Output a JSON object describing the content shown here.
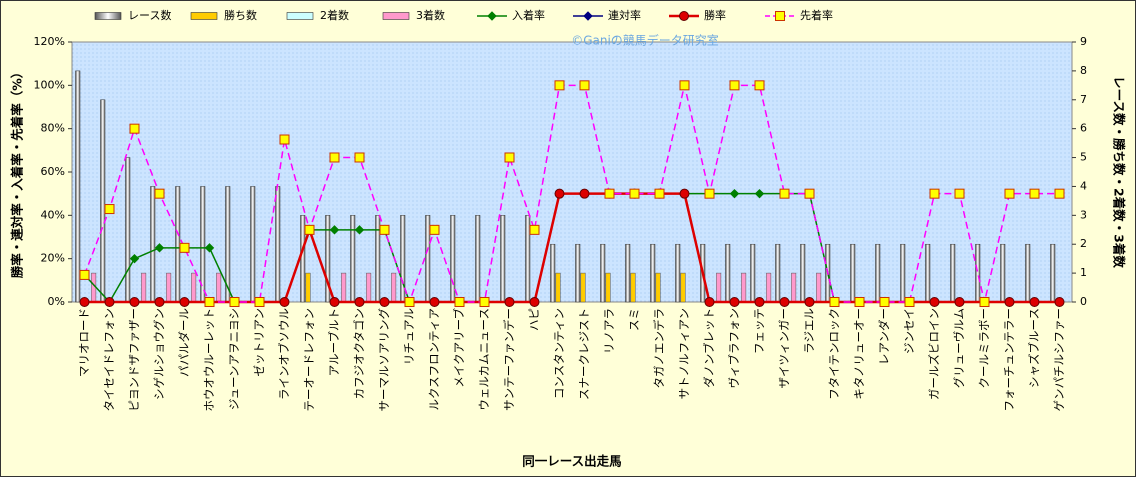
{
  "chart_data": {
    "type": "bar-line-combo",
    "watermark": "©Ganiの競馬データ研究室",
    "xlabel": "同一レース出走馬",
    "ylabel": "勝率・連対率・入着率・先着率（%）",
    "y2label": "レース数・勝ち数・2着数・3着数",
    "categories": [
      "マリオロード",
      "タイセイドレフォン",
      "ピヨンドザファザー",
      "シゲルショウグン",
      "パパルダール",
      "ホウオウルーレット",
      "ジューンアヲニヨシ",
      "ゼットリアン",
      "ラインオブソウル",
      "テーオードレフォン",
      "アルーブルト",
      "カフジオクタゴン",
      "サーマルソアリング",
      "リチュアル",
      "ルクスフロンティア",
      "メイクアリーブ",
      "ウェルカムニュース",
      "サンテーファンデー",
      "ハピ",
      "コンスタンティン",
      "スナークレジスト",
      "リノアラ",
      "スミ",
      "タガノエンデラ",
      "サトノルフィアン",
      "ダノンブレット",
      "ヴィブラフォン",
      "フェッテ",
      "ザイツィンガー",
      "ラジエル",
      "フタイテンロック",
      "キタノリューオー",
      "レアンダー",
      "ジンセイ",
      "ガールズビロイン",
      "グリューヴルム",
      "クールミラボー",
      "フォーチュンテラー",
      "シャズブルース",
      "ゲンパチルシファー"
    ],
    "ylim": [
      0,
      120
    ],
    "yticks": [
      {
        "value": 0,
        "label": "0%"
      },
      {
        "value": 20,
        "label": "20%"
      },
      {
        "value": 40,
        "label": "40%"
      },
      {
        "value": 60,
        "label": "60%"
      },
      {
        "value": 80,
        "label": "80%"
      },
      {
        "value": 100,
        "label": "100%"
      },
      {
        "value": 120,
        "label": "120%"
      }
    ],
    "y2lim": [
      0,
      9
    ],
    "y2ticks": [
      0,
      1,
      2,
      3,
      4,
      5,
      6,
      7,
      8,
      9
    ],
    "series": [
      {
        "name": "レース数",
        "type": "bar",
        "axis": "y2",
        "color": "#ffffff",
        "values": [
          8,
          7,
          5,
          4,
          4,
          4,
          4,
          4,
          4,
          3,
          3,
          3,
          3,
          3,
          3,
          3,
          3,
          3,
          3,
          2,
          2,
          2,
          2,
          2,
          2,
          2,
          2,
          2,
          2,
          2,
          2,
          2,
          2,
          2,
          2,
          2,
          2,
          2,
          2,
          2
        ]
      },
      {
        "name": "勝ち数",
        "type": "bar",
        "axis": "y2",
        "color": "#ffcc00",
        "values": [
          0,
          0,
          0,
          0,
          0,
          0,
          0,
          0,
          0,
          1,
          0,
          0,
          0,
          0,
          0,
          0,
          0,
          0,
          0,
          1,
          1,
          1,
          1,
          1,
          1,
          0,
          0,
          0,
          0,
          0,
          0,
          0,
          0,
          0,
          0,
          0,
          0,
          0,
          0,
          0
        ]
      },
      {
        "name": "2着数",
        "type": "bar",
        "axis": "y2",
        "color": "#ccffff",
        "values": [
          0,
          0,
          0,
          0,
          0,
          0,
          0,
          0,
          0,
          0,
          0,
          0,
          0,
          0,
          0,
          0,
          0,
          0,
          0,
          0,
          0,
          0,
          0,
          0,
          0,
          0,
          0,
          0,
          0,
          0,
          0,
          0,
          0,
          0,
          0,
          0,
          0,
          0,
          0,
          0
        ]
      },
      {
        "name": "3着数",
        "type": "bar",
        "axis": "y2",
        "color": "#ff99cc",
        "values": [
          1,
          0,
          1,
          1,
          1,
          1,
          0,
          0,
          0,
          0,
          1,
          1,
          1,
          0,
          0,
          0,
          0,
          0,
          0,
          0,
          0,
          0,
          0,
          0,
          0,
          1,
          1,
          1,
          1,
          1,
          0,
          0,
          0,
          0,
          0,
          0,
          0,
          0,
          0,
          0
        ]
      },
      {
        "name": "入着率",
        "type": "line",
        "marker": "diamond",
        "color": "#008000",
        "values": [
          12.5,
          0,
          20,
          25,
          25,
          25,
          0,
          0,
          0,
          33.3,
          33.3,
          33.3,
          33.3,
          0,
          0,
          0,
          0,
          0,
          0,
          50,
          50,
          50,
          50,
          50,
          50,
          50,
          50,
          50,
          50,
          50,
          0,
          0,
          0,
          0,
          0,
          0,
          0,
          0,
          0,
          0
        ]
      },
      {
        "name": "連対率",
        "type": "line",
        "marker": "diamond",
        "color": "#000080",
        "values": [
          0,
          0,
          0,
          0,
          0,
          0,
          0,
          0,
          0,
          33.3,
          0,
          0,
          0,
          0,
          0,
          0,
          0,
          0,
          0,
          50,
          50,
          50,
          50,
          50,
          50,
          0,
          0,
          0,
          0,
          0,
          0,
          0,
          0,
          0,
          0,
          0,
          0,
          0,
          0,
          0
        ]
      },
      {
        "name": "勝率",
        "type": "line",
        "marker": "circle",
        "color": "#dd0000",
        "values": [
          0,
          0,
          0,
          0,
          0,
          0,
          0,
          0,
          0,
          33.3,
          0,
          0,
          0,
          0,
          0,
          0,
          0,
          0,
          0,
          50,
          50,
          50,
          50,
          50,
          50,
          0,
          0,
          0,
          0,
          0,
          0,
          0,
          0,
          0,
          0,
          0,
          0,
          0,
          0,
          0
        ]
      },
      {
        "name": "先着率",
        "type": "line",
        "marker": "square",
        "dashed": true,
        "color": "#ff00ff",
        "values": [
          12.5,
          42.9,
          80,
          50,
          25,
          0,
          0,
          0,
          75,
          33.3,
          66.7,
          66.7,
          33.3,
          0,
          33.3,
          0,
          0,
          66.7,
          33.3,
          100,
          100,
          50,
          50,
          50,
          100,
          50,
          100,
          100,
          50,
          50,
          0,
          0,
          0,
          0,
          50,
          50,
          0,
          50,
          50,
          50
        ]
      }
    ]
  }
}
